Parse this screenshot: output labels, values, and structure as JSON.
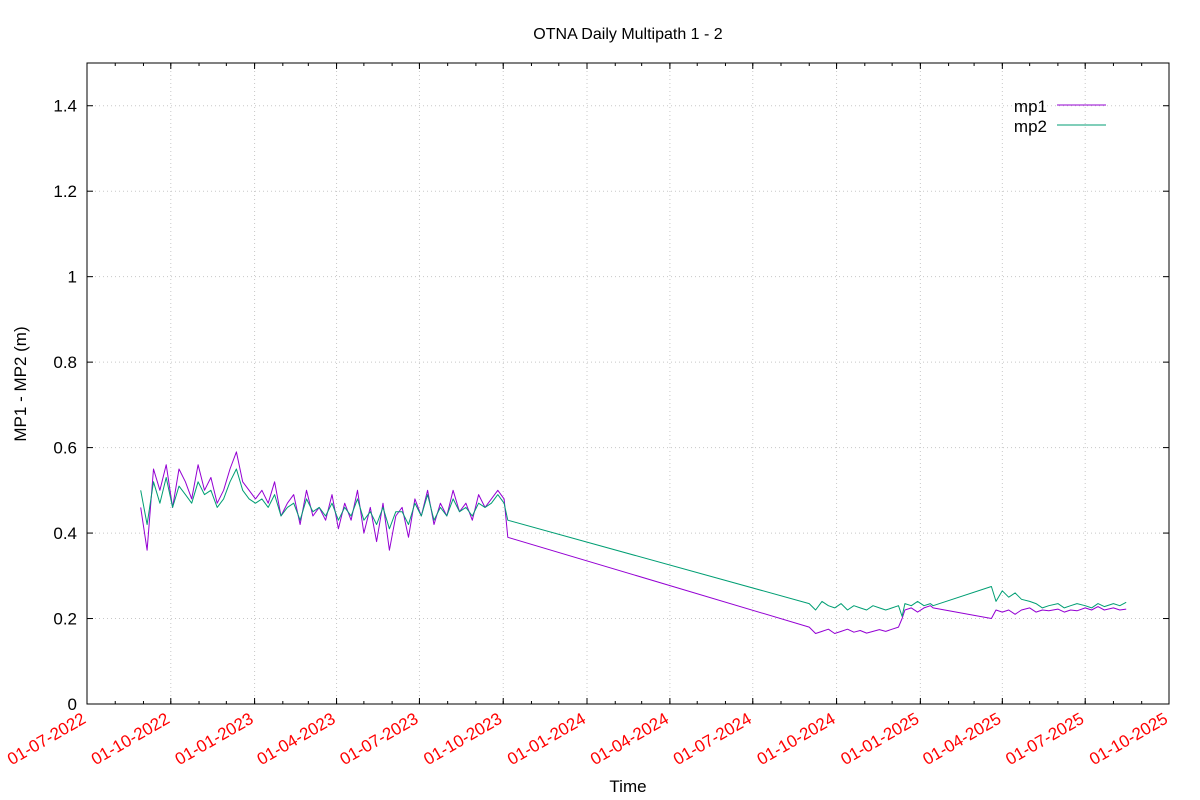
{
  "chart_data": {
    "type": "line",
    "title": "OTNA Daily Multipath 1 - 2",
    "xlabel": "Time",
    "ylabel": "MP1 - MP2 (m)",
    "xlim": [
      "2022-07-01",
      "2025-10-01"
    ],
    "ylim": [
      0,
      1.5
    ],
    "yticks": [
      0,
      0.2,
      0.4,
      0.6,
      0.8,
      1,
      1.2,
      1.4
    ],
    "ytick_labels": [
      "0",
      "0.2",
      "0.4",
      "0.6",
      "0.8",
      "1",
      "1.2",
      "1.4"
    ],
    "xticks": [
      "2022-07-01",
      "2022-10-01",
      "2023-01-01",
      "2023-04-01",
      "2023-07-01",
      "2023-10-01",
      "2024-01-01",
      "2024-04-01",
      "2024-07-01",
      "2024-10-01",
      "2025-01-01",
      "2025-04-01",
      "2025-07-01",
      "2025-10-01"
    ],
    "xtick_labels": [
      "01-07-2022",
      "01-10-2022",
      "01-01-2023",
      "01-04-2023",
      "01-07-2023",
      "01-10-2023",
      "01-01-2024",
      "01-04-2024",
      "01-07-2024",
      "01-10-2024",
      "01-01-2025",
      "01-04-2025",
      "01-07-2025",
      "01-10-2025"
    ],
    "xtick_color": "#ff0000",
    "grid": true,
    "legend_position": "top-right",
    "series": [
      {
        "name": "mp1",
        "color": "#9400d3",
        "points": [
          [
            "2022-08-29",
            0.46
          ],
          [
            "2022-09-05",
            0.36
          ],
          [
            "2022-09-12",
            0.55
          ],
          [
            "2022-09-19",
            0.5
          ],
          [
            "2022-09-26",
            0.56
          ],
          [
            "2022-10-03",
            0.46
          ],
          [
            "2022-10-10",
            0.55
          ],
          [
            "2022-10-17",
            0.52
          ],
          [
            "2022-10-24",
            0.48
          ],
          [
            "2022-10-31",
            0.56
          ],
          [
            "2022-11-07",
            0.5
          ],
          [
            "2022-11-14",
            0.53
          ],
          [
            "2022-11-21",
            0.47
          ],
          [
            "2022-11-28",
            0.5
          ],
          [
            "2022-12-05",
            0.55
          ],
          [
            "2022-12-12",
            0.59
          ],
          [
            "2022-12-19",
            0.52
          ],
          [
            "2022-12-26",
            0.5
          ],
          [
            "2023-01-02",
            0.48
          ],
          [
            "2023-01-09",
            0.5
          ],
          [
            "2023-01-16",
            0.47
          ],
          [
            "2023-01-23",
            0.52
          ],
          [
            "2023-01-30",
            0.44
          ],
          [
            "2023-02-06",
            0.47
          ],
          [
            "2023-02-13",
            0.49
          ],
          [
            "2023-02-20",
            0.42
          ],
          [
            "2023-02-27",
            0.5
          ],
          [
            "2023-03-06",
            0.44
          ],
          [
            "2023-03-13",
            0.46
          ],
          [
            "2023-03-20",
            0.43
          ],
          [
            "2023-03-27",
            0.49
          ],
          [
            "2023-04-03",
            0.41
          ],
          [
            "2023-04-10",
            0.47
          ],
          [
            "2023-04-17",
            0.43
          ],
          [
            "2023-04-24",
            0.5
          ],
          [
            "2023-05-01",
            0.4
          ],
          [
            "2023-05-08",
            0.46
          ],
          [
            "2023-05-15",
            0.38
          ],
          [
            "2023-05-22",
            0.47
          ],
          [
            "2023-05-29",
            0.36
          ],
          [
            "2023-06-05",
            0.44
          ],
          [
            "2023-06-12",
            0.46
          ],
          [
            "2023-06-19",
            0.39
          ],
          [
            "2023-06-26",
            0.48
          ],
          [
            "2023-07-03",
            0.44
          ],
          [
            "2023-07-10",
            0.5
          ],
          [
            "2023-07-17",
            0.42
          ],
          [
            "2023-07-24",
            0.47
          ],
          [
            "2023-07-31",
            0.44
          ],
          [
            "2023-08-07",
            0.5
          ],
          [
            "2023-08-14",
            0.45
          ],
          [
            "2023-08-21",
            0.47
          ],
          [
            "2023-08-28",
            0.43
          ],
          [
            "2023-09-04",
            0.49
          ],
          [
            "2023-09-11",
            0.46
          ],
          [
            "2023-09-18",
            0.48
          ],
          [
            "2023-09-25",
            0.5
          ],
          [
            "2023-10-02",
            0.48
          ],
          [
            "2023-10-06",
            0.39
          ],
          [
            "2024-09-01",
            0.18
          ],
          [
            "2024-09-08",
            0.165
          ],
          [
            "2024-09-15",
            0.17
          ],
          [
            "2024-09-22",
            0.175
          ],
          [
            "2024-09-29",
            0.165
          ],
          [
            "2024-10-06",
            0.17
          ],
          [
            "2024-10-13",
            0.175
          ],
          [
            "2024-10-20",
            0.168
          ],
          [
            "2024-10-27",
            0.172
          ],
          [
            "2024-11-03",
            0.166
          ],
          [
            "2024-11-10",
            0.17
          ],
          [
            "2024-11-17",
            0.174
          ],
          [
            "2024-11-24",
            0.17
          ],
          [
            "2024-12-01",
            0.175
          ],
          [
            "2024-12-08",
            0.18
          ],
          [
            "2024-12-12",
            0.2
          ],
          [
            "2024-12-15",
            0.22
          ],
          [
            "2024-12-22",
            0.225
          ],
          [
            "2024-12-29",
            0.215
          ],
          [
            "2025-01-05",
            0.225
          ],
          [
            "2025-01-12",
            0.23
          ],
          [
            "2025-01-15",
            0.225
          ],
          [
            "2025-03-20",
            0.2
          ],
          [
            "2025-03-25",
            0.22
          ],
          [
            "2025-04-01",
            0.215
          ],
          [
            "2025-04-08",
            0.22
          ],
          [
            "2025-04-15",
            0.21
          ],
          [
            "2025-04-22",
            0.22
          ],
          [
            "2025-05-01",
            0.225
          ],
          [
            "2025-05-08",
            0.215
          ],
          [
            "2025-05-15",
            0.22
          ],
          [
            "2025-05-22",
            0.218
          ],
          [
            "2025-06-01",
            0.222
          ],
          [
            "2025-06-08",
            0.215
          ],
          [
            "2025-06-15",
            0.22
          ],
          [
            "2025-06-22",
            0.218
          ],
          [
            "2025-07-01",
            0.225
          ],
          [
            "2025-07-08",
            0.22
          ],
          [
            "2025-07-15",
            0.228
          ],
          [
            "2025-07-22",
            0.22
          ],
          [
            "2025-08-01",
            0.225
          ],
          [
            "2025-08-08",
            0.22
          ],
          [
            "2025-08-15",
            0.222
          ]
        ]
      },
      {
        "name": "mp2",
        "color": "#009e73",
        "points": [
          [
            "2022-08-29",
            0.5
          ],
          [
            "2022-09-05",
            0.42
          ],
          [
            "2022-09-12",
            0.52
          ],
          [
            "2022-09-19",
            0.47
          ],
          [
            "2022-09-26",
            0.53
          ],
          [
            "2022-10-03",
            0.46
          ],
          [
            "2022-10-10",
            0.51
          ],
          [
            "2022-10-17",
            0.49
          ],
          [
            "2022-10-24",
            0.47
          ],
          [
            "2022-10-31",
            0.52
          ],
          [
            "2022-11-07",
            0.49
          ],
          [
            "2022-11-14",
            0.5
          ],
          [
            "2022-11-21",
            0.46
          ],
          [
            "2022-11-28",
            0.48
          ],
          [
            "2022-12-05",
            0.52
          ],
          [
            "2022-12-12",
            0.55
          ],
          [
            "2022-12-19",
            0.5
          ],
          [
            "2022-12-26",
            0.48
          ],
          [
            "2023-01-02",
            0.47
          ],
          [
            "2023-01-09",
            0.48
          ],
          [
            "2023-01-16",
            0.46
          ],
          [
            "2023-01-23",
            0.49
          ],
          [
            "2023-01-30",
            0.44
          ],
          [
            "2023-02-06",
            0.46
          ],
          [
            "2023-02-13",
            0.47
          ],
          [
            "2023-02-20",
            0.43
          ],
          [
            "2023-02-27",
            0.48
          ],
          [
            "2023-03-06",
            0.45
          ],
          [
            "2023-03-13",
            0.46
          ],
          [
            "2023-03-20",
            0.44
          ],
          [
            "2023-03-27",
            0.47
          ],
          [
            "2023-04-03",
            0.43
          ],
          [
            "2023-04-10",
            0.46
          ],
          [
            "2023-04-17",
            0.44
          ],
          [
            "2023-04-24",
            0.48
          ],
          [
            "2023-05-01",
            0.43
          ],
          [
            "2023-05-08",
            0.45
          ],
          [
            "2023-05-15",
            0.42
          ],
          [
            "2023-05-22",
            0.46
          ],
          [
            "2023-05-29",
            0.41
          ],
          [
            "2023-06-05",
            0.45
          ],
          [
            "2023-06-12",
            0.45
          ],
          [
            "2023-06-19",
            0.42
          ],
          [
            "2023-06-26",
            0.47
          ],
          [
            "2023-07-03",
            0.44
          ],
          [
            "2023-07-10",
            0.49
          ],
          [
            "2023-07-17",
            0.43
          ],
          [
            "2023-07-24",
            0.46
          ],
          [
            "2023-07-31",
            0.44
          ],
          [
            "2023-08-07",
            0.48
          ],
          [
            "2023-08-14",
            0.45
          ],
          [
            "2023-08-21",
            0.46
          ],
          [
            "2023-08-28",
            0.44
          ],
          [
            "2023-09-04",
            0.47
          ],
          [
            "2023-09-11",
            0.46
          ],
          [
            "2023-09-18",
            0.47
          ],
          [
            "2023-09-25",
            0.49
          ],
          [
            "2023-10-02",
            0.47
          ],
          [
            "2023-10-06",
            0.43
          ],
          [
            "2024-09-01",
            0.235
          ],
          [
            "2024-09-08",
            0.22
          ],
          [
            "2024-09-15",
            0.24
          ],
          [
            "2024-09-22",
            0.23
          ],
          [
            "2024-09-29",
            0.225
          ],
          [
            "2024-10-06",
            0.235
          ],
          [
            "2024-10-13",
            0.22
          ],
          [
            "2024-10-20",
            0.23
          ],
          [
            "2024-10-27",
            0.225
          ],
          [
            "2024-11-03",
            0.22
          ],
          [
            "2024-11-10",
            0.23
          ],
          [
            "2024-11-17",
            0.225
          ],
          [
            "2024-11-24",
            0.22
          ],
          [
            "2024-12-01",
            0.225
          ],
          [
            "2024-12-08",
            0.23
          ],
          [
            "2024-12-12",
            0.205
          ],
          [
            "2024-12-15",
            0.235
          ],
          [
            "2024-12-22",
            0.23
          ],
          [
            "2024-12-29",
            0.24
          ],
          [
            "2025-01-05",
            0.23
          ],
          [
            "2025-01-12",
            0.235
          ],
          [
            "2025-01-15",
            0.23
          ],
          [
            "2025-03-20",
            0.275
          ],
          [
            "2025-03-25",
            0.24
          ],
          [
            "2025-04-01",
            0.265
          ],
          [
            "2025-04-08",
            0.25
          ],
          [
            "2025-04-15",
            0.26
          ],
          [
            "2025-04-22",
            0.245
          ],
          [
            "2025-05-01",
            0.24
          ],
          [
            "2025-05-08",
            0.235
          ],
          [
            "2025-05-15",
            0.225
          ],
          [
            "2025-05-22",
            0.23
          ],
          [
            "2025-06-01",
            0.235
          ],
          [
            "2025-06-08",
            0.225
          ],
          [
            "2025-06-15",
            0.23
          ],
          [
            "2025-06-22",
            0.235
          ],
          [
            "2025-07-01",
            0.23
          ],
          [
            "2025-07-08",
            0.225
          ],
          [
            "2025-07-15",
            0.235
          ],
          [
            "2025-07-22",
            0.228
          ],
          [
            "2025-08-01",
            0.235
          ],
          [
            "2025-08-08",
            0.23
          ],
          [
            "2025-08-15",
            0.238
          ]
        ]
      }
    ]
  }
}
